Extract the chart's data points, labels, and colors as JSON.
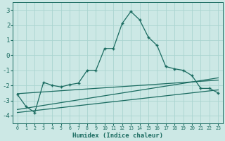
{
  "xlabel": "Humidex (Indice chaleur)",
  "background_color": "#cce8e5",
  "grid_color": "#aad4d0",
  "line_color": "#1a6b60",
  "xlim": [
    -0.5,
    23.5
  ],
  "ylim": [
    -4.5,
    3.5
  ],
  "yticks": [
    -4,
    -3,
    -2,
    -1,
    0,
    1,
    2,
    3
  ],
  "xticks": [
    0,
    1,
    2,
    3,
    4,
    5,
    6,
    7,
    8,
    9,
    10,
    11,
    12,
    13,
    14,
    15,
    16,
    17,
    18,
    19,
    20,
    21,
    22,
    23
  ],
  "series1_x": [
    0,
    1,
    2,
    3,
    4,
    5,
    6,
    7,
    8,
    9,
    10,
    11,
    12,
    13,
    14,
    15,
    16,
    17,
    18,
    19,
    20,
    21,
    22,
    23
  ],
  "series1_y": [
    -2.6,
    -3.4,
    -3.8,
    -1.8,
    -2.0,
    -2.1,
    -1.95,
    -1.85,
    -1.0,
    -1.0,
    0.45,
    0.45,
    2.1,
    2.9,
    2.35,
    1.2,
    0.65,
    -0.75,
    -0.9,
    -1.0,
    -1.35,
    -2.2,
    -2.2,
    -2.5
  ],
  "series2_x": [
    0,
    23
  ],
  "series2_y": [
    -2.55,
    -1.65
  ],
  "series3_x": [
    0,
    23
  ],
  "series3_y": [
    -3.8,
    -2.3
  ],
  "series4_x": [
    0,
    23
  ],
  "series4_y": [
    -3.6,
    -1.5
  ]
}
